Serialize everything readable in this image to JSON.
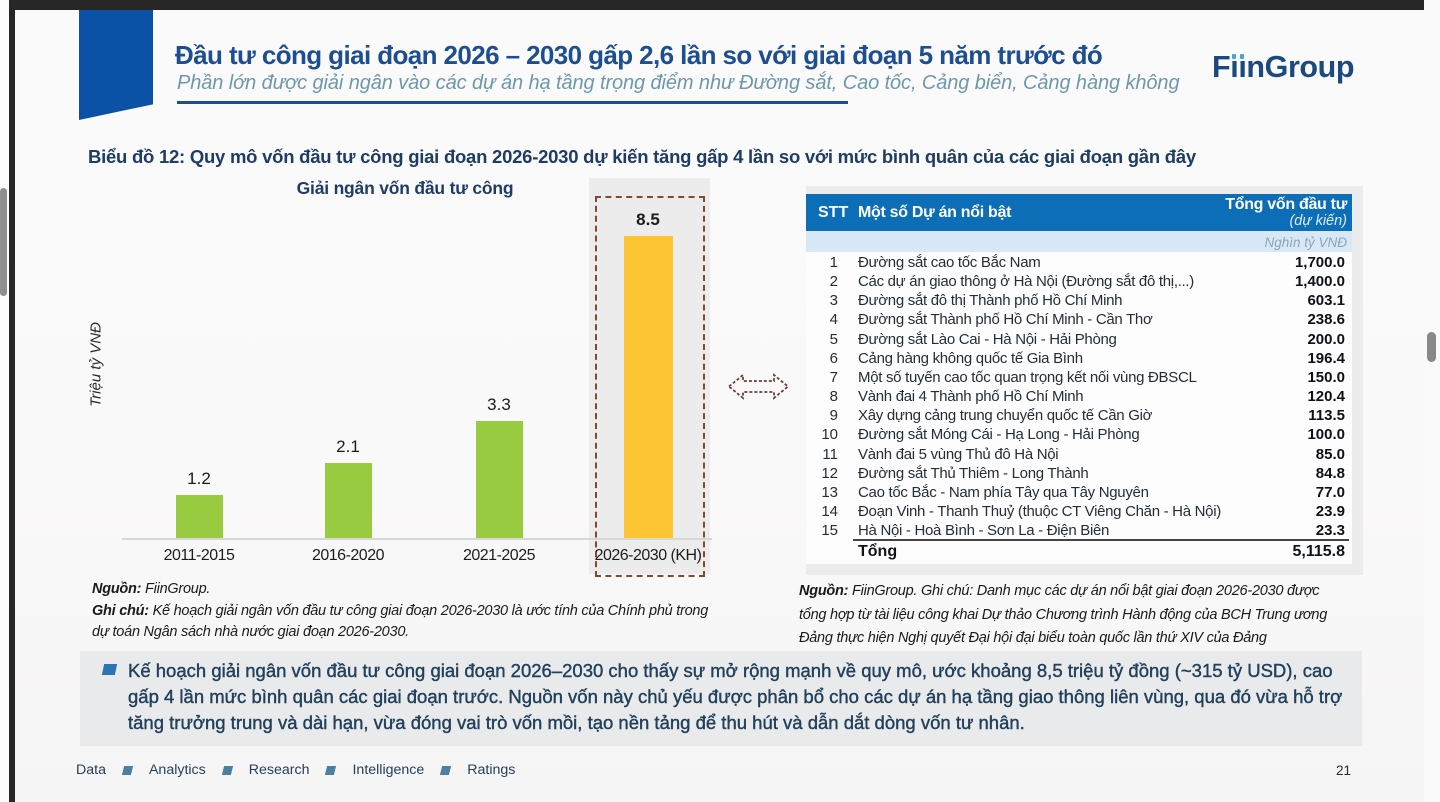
{
  "header": {
    "title": "Đầu tư công giai đoạn 2026 – 2030 gấp 2,6 lần so với giai đoạn 5 năm trước đó",
    "subtitle": "Phần lớn được giải ngân vào các dự án hạ tầng trọng điểm như Đường sắt, Cao tốc, Cảng biển, Cảng hàng không",
    "logo_f": "F",
    "logo_i": "ı",
    "logo_rest": "nGroup"
  },
  "section_heading": "Biểu đồ 12: Quy mô vốn đầu tư công giai đoạn 2026-2030 dự kiến tăng gấp 4 lần so với mức bình quân của các giai đoạn gần đây",
  "chart_data": {
    "type": "bar",
    "title": "Giải ngân vốn đầu tư công",
    "ylabel": "Triệu tỷ VNĐ",
    "categories": [
      "2011-2015",
      "2016-2020",
      "2021-2025",
      "2026-2030 (KH)"
    ],
    "values": [
      1.2,
      2.1,
      3.3,
      8.5
    ],
    "labels": [
      "1.2",
      "2.1",
      "3.3",
      "8.5"
    ],
    "bar_color": "#99cb40",
    "highlight_color": "#fdc434",
    "highlight_index": 3,
    "ylim": [
      0,
      10
    ],
    "grid": false,
    "legend": false
  },
  "chart_note": {
    "source_label": "Nguồn:",
    "source_text": " FiinGroup.",
    "note_label": "Ghi chú:",
    "note_text": " Kế hoạch giải ngân vốn đầu tư công giai đoạn 2026-2030 là ước tính của Chính phủ trong dự toán Ngân sách nhà nước giai đoạn 2026-2030."
  },
  "table": {
    "header": {
      "stt": "STT",
      "name": "Một số Dự án nổi bật",
      "value_line1": "Tổng vốn đầu tư",
      "value_line2": "(dự kiến)"
    },
    "unit": "Nghìn tỷ VNĐ",
    "rows": [
      {
        "stt": "1",
        "name": "Đường sắt cao tốc Bắc Nam",
        "value": "1,700.0"
      },
      {
        "stt": "2",
        "name": "Các dự án giao thông ở Hà Nội (Đường sắt đô thị,...)",
        "value": "1,400.0"
      },
      {
        "stt": "3",
        "name": "Đường sắt đô thị Thành phố Hồ Chí Minh",
        "value": "603.1"
      },
      {
        "stt": "4",
        "name": "Đường sắt Thành phố Hồ Chí Minh - Cần Thơ",
        "value": "238.6"
      },
      {
        "stt": "5",
        "name": "Đường sắt Lào Cai - Hà Nội - Hải Phòng",
        "value": "200.0"
      },
      {
        "stt": "6",
        "name": "Cảng hàng không quốc tế Gia Bình",
        "value": "196.4"
      },
      {
        "stt": "7",
        "name": "Một số tuyến cao tốc quan trọng kết nối vùng ĐBSCL",
        "value": "150.0"
      },
      {
        "stt": "8",
        "name": "Vành đai 4 Thành phố Hồ Chí Minh",
        "value": "120.4"
      },
      {
        "stt": "9",
        "name": "Xây dựng cảng trung chuyển quốc tế Cần Giờ",
        "value": "113.5"
      },
      {
        "stt": "10",
        "name": "Đường sắt Móng Cái - Hạ Long - Hải Phòng",
        "value": "100.0"
      },
      {
        "stt": "11",
        "name": "Vành đai 5 vùng Thủ đô Hà Nội",
        "value": "85.0"
      },
      {
        "stt": "12",
        "name": "Đường sắt Thủ Thiêm - Long Thành",
        "value": "84.8"
      },
      {
        "stt": "13",
        "name": "Cao tốc Bắc - Nam phía Tây qua Tây Nguyên",
        "value": "77.0"
      },
      {
        "stt": "14",
        "name": "Đoạn Vinh - Thanh Thuỷ (thuộc CT Viêng Chăn - Hà Nội)",
        "value": "23.9"
      },
      {
        "stt": "15",
        "name": "Hà Nội - Hoà Bình - Sơn La - Điện Biên",
        "value": "23.3"
      }
    ],
    "total_label": "Tổng",
    "total_value": "5,115.8",
    "note_label": "Nguồn:",
    "note_text": " FiinGroup. Ghi chú: Danh mục các dự án nổi bật giai đoạn 2026-2030 được tổng hợp từ tài liệu công khai Dự thảo Chương trình Hành động của BCH Trung ương Đảng thực hiện Nghị quyết Đại hội đại biểu toàn quốc lần thứ XIV của Đảng"
  },
  "callout": {
    "text": "Kế hoạch giải ngân vốn đầu tư công giai đoạn 2026–2030 cho thấy sự mở rộng mạnh về quy mô, ước khoảng 8,5 triệu tỷ đồng (~315 tỷ USD), cao gấp 4 lần mức bình quân các giai đoạn trước. Nguồn vốn này chủ yếu được phân bổ cho các dự án hạ tầng giao thông liên vùng, qua đó vừa hỗ trợ tăng trưởng trung và dài hạn, vừa đóng vai trò vốn mồi, tạo nền tảng để thu hút và dẫn dắt dòng vốn tư nhân."
  },
  "footer": {
    "items": [
      "Data",
      "Analytics",
      "Research",
      "Intelligence",
      "Ratings"
    ],
    "page": "21"
  },
  "colors": {
    "accent_blue": "#0b51a5",
    "title_navy": "#1e4e92",
    "subtitle_teal": "#6d98ac",
    "bar_green": "#99cb40",
    "bar_yellow": "#fdc434",
    "dash_orange": "#82492f",
    "table_header_blue": "#0d6eb8"
  }
}
